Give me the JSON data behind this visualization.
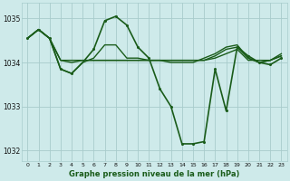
{
  "title": "Graphe pression niveau de la mer (hPa)",
  "bg_color": "#ceeaea",
  "line_color": "#1a5c1a",
  "grid_color": "#a8cccc",
  "ylim": [
    1031.75,
    1035.35
  ],
  "yticks": [
    1032,
    1033,
    1034,
    1035
  ],
  "xlim": [
    -0.5,
    23.5
  ],
  "xticks": [
    0,
    1,
    2,
    3,
    4,
    5,
    6,
    7,
    8,
    9,
    10,
    11,
    12,
    13,
    14,
    15,
    16,
    17,
    18,
    19,
    20,
    21,
    22,
    23
  ],
  "series": [
    {
      "y": [
        1034.55,
        1034.75,
        1034.55,
        1034.05,
        1034.05,
        1034.05,
        1034.05,
        1034.05,
        1034.05,
        1034.05,
        1034.05,
        1034.05,
        1034.05,
        1034.05,
        1034.05,
        1034.05,
        1034.05,
        1034.1,
        1034.2,
        1034.3,
        1034.05,
        1034.05,
        1034.05,
        1034.2
      ],
      "has_markers": false,
      "lw": 1.0
    },
    {
      "y": [
        1034.55,
        1034.75,
        1034.55,
        1034.05,
        1034.0,
        1034.05,
        1034.05,
        1034.05,
        1034.05,
        1034.05,
        1034.05,
        1034.05,
        1034.05,
        1034.05,
        1034.05,
        1034.05,
        1034.05,
        1034.15,
        1034.3,
        1034.35,
        1034.1,
        1034.0,
        1034.05,
        1034.15
      ],
      "has_markers": false,
      "lw": 1.0
    },
    {
      "y": [
        1034.55,
        1034.75,
        1034.55,
        1033.85,
        1033.75,
        1034.0,
        1034.1,
        1034.4,
        1034.4,
        1034.1,
        1034.1,
        1034.05,
        1034.05,
        1034.0,
        1034.0,
        1034.0,
        1034.1,
        1034.2,
        1034.35,
        1034.4,
        1034.1,
        1034.0,
        1034.05,
        1034.15
      ],
      "has_markers": false,
      "lw": 1.0
    },
    {
      "y": [
        1034.55,
        1034.75,
        1034.55,
        1033.85,
        1033.75,
        1034.0,
        1034.3,
        1034.95,
        1035.05,
        1034.85,
        1034.35,
        1034.1,
        1033.4,
        1033.0,
        1032.15,
        1032.15,
        1032.2,
        1033.85,
        1032.9,
        1034.35,
        1034.15,
        1034.0,
        1033.95,
        1034.1
      ],
      "marker_indices": [
        0,
        1,
        2,
        3,
        4,
        6,
        7,
        8,
        9,
        10,
        11,
        12,
        13,
        14,
        15,
        16,
        17,
        18,
        19,
        20,
        21,
        22,
        23
      ],
      "has_markers": true,
      "lw": 1.2
    }
  ],
  "marker_size": 2.2
}
